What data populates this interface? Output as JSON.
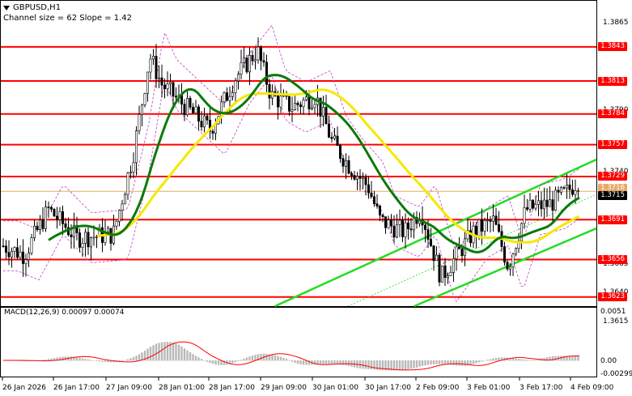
{
  "symbol_header": "GBPUSD,H1",
  "channel_info": "Channel size = 62 Slope = 1.42",
  "macd_label": "MACD(12,26,9) 0.00097 0.00074",
  "price_axis": [
    "1.3865",
    "1.3790",
    "1.3740",
    "1.3665",
    "1.3640",
    "1.3615"
  ],
  "level_labels": [
    "1.3843",
    "1.3813",
    "1.3784",
    "1.3757",
    "1.3729",
    "1.3691",
    "1.3656",
    "1.3623"
  ],
  "current_price": "1.3715",
  "aux_label": "1.3716",
  "macd_axis": [
    "0.0051",
    "0.00",
    "-0.00299"
  ],
  "time_axis": [
    "26 Jan 2026",
    "26 Jan 17:00",
    "27 Jan 09:00",
    "28 Jan 01:00",
    "28 Jan 17:00",
    "29 Jan 09:00",
    "30 Jan 01:00",
    "30 Jan 17:00",
    "2 Feb 09:00",
    "3 Feb 01:00",
    "3 Feb 17:00",
    "4 Feb 09:00"
  ],
  "colors": {
    "level_line": "#ff0000",
    "ma_fast": "#0a7a0a",
    "ma_slow": "#f5e800",
    "channel": "#22dd22",
    "envelope": "#c040c0",
    "candle": "#000000",
    "macd_hist": "#b8b8b8",
    "macd_signal": "#ff0000"
  }
}
